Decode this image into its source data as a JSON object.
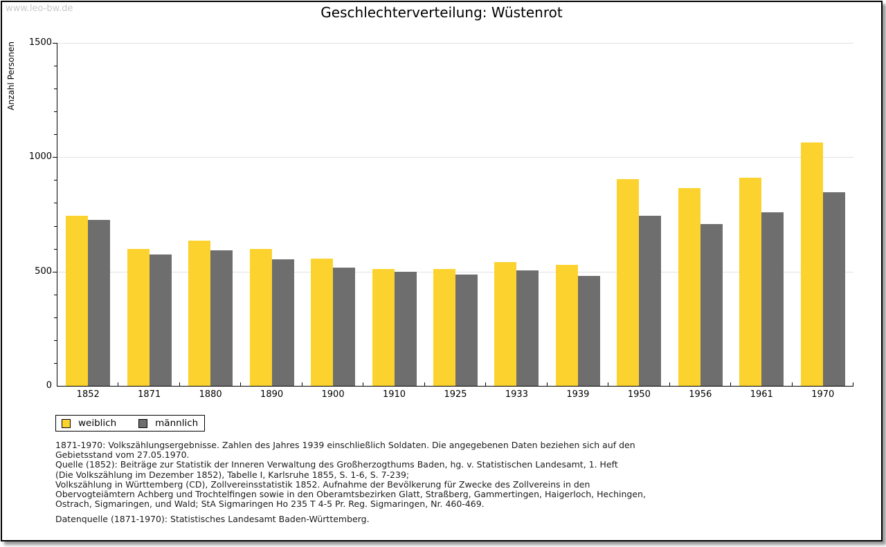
{
  "watermark": "www.leo-bw.de",
  "header": {
    "title": "Geschlechterverteilung: Wüstenrot"
  },
  "chart_data": {
    "type": "bar",
    "title": "Geschlechterverteilung: Wüstenrot",
    "xlabel": "",
    "ylabel": "Anzahl Personen",
    "categories": [
      "1852",
      "1871",
      "1880",
      "1890",
      "1900",
      "1910",
      "1925",
      "1933",
      "1939",
      "1950",
      "1956",
      "1961",
      "1970"
    ],
    "series": [
      {
        "name": "weiblich",
        "color": "#FCD32E",
        "values": [
          745,
          600,
          635,
          600,
          555,
          510,
          510,
          540,
          530,
          905,
          865,
          910,
          1065
        ]
      },
      {
        "name": "männlich",
        "color": "#6E6E6E",
        "values": [
          727,
          575,
          592,
          552,
          518,
          500,
          488,
          505,
          480,
          745,
          708,
          758,
          848
        ]
      }
    ],
    "ylim": [
      0,
      1500
    ],
    "yticks": [
      0,
      500,
      1000,
      1500
    ],
    "minor_tick_step": 100,
    "grid": true,
    "legend_position": "below-left"
  },
  "legend": {
    "items": [
      {
        "label": "weiblich",
        "color": "#FCD32E"
      },
      {
        "label": "männlich",
        "color": "#6E6E6E"
      }
    ]
  },
  "footnotes": {
    "lines": [
      "1871-1970: Volkszählungsergebnisse. Zahlen des Jahres 1939 einschließlich Soldaten. Die angegebenen Daten beziehen sich auf den",
      "Gebietsstand vom 27.05.1970.",
      "Quelle (1852): Beiträge zur Statistik der Inneren Verwaltung des Großherzogthums Baden, hg. v. Statistischen Landesamt, 1. Heft",
      "(Die Volkszählung im Dezember 1852), Tabelle I, Karlsruhe 1855, S. 1-6, S. 7-239;",
      "Volkszählung in Württemberg (CD), Zollvereinsstatistik 1852. Aufnahme der Bevölkerung für Zwecke des Zollvereins in den",
      "Obervogteiämtern Achberg und Trochtelfingen sowie in den Oberamtsbezirken Glatt, Straßberg, Gammertingen, Haigerloch, Hechingen,",
      "Ostrach, Sigmaringen, und Wald; StA Sigmaringen Ho 235 T 4-5 Pr. Reg. Sigmaringen, Nr. 460-469."
    ],
    "datasource": "Datenquelle (1871-1970): Statistisches Landesamt Baden-Württemberg."
  }
}
